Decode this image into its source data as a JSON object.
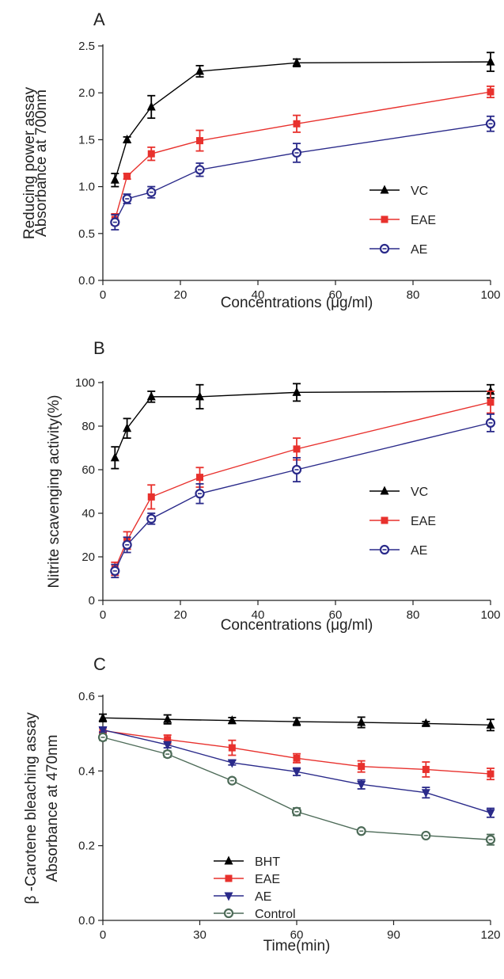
{
  "chart_data": [
    {
      "panel": "A",
      "type": "line",
      "title": "",
      "xlabel": "Concentrations (μg/ml)",
      "ylabel": [
        "Reducing power assay",
        "Absorbance at 700nm"
      ],
      "xlim": [
        0,
        100
      ],
      "ylim": [
        0,
        2.5
      ],
      "xticks": [
        0,
        20,
        40,
        60,
        80,
        100
      ],
      "yticks": [
        0.0,
        0.5,
        1.0,
        1.5,
        2.0,
        2.5
      ],
      "ytick_labels": [
        "0.0",
        "0.5",
        "1.0",
        "1.5",
        "2.0",
        "2.5"
      ],
      "legend_position": "center-right",
      "grid": false,
      "series": [
        {
          "name": "VC",
          "color": "#000000",
          "marker": "triangle-up",
          "x": [
            3.125,
            6.25,
            12.5,
            25,
            50,
            100
          ],
          "y": [
            1.07,
            1.5,
            1.85,
            2.23,
            2.32,
            2.33
          ],
          "err": [
            0.07,
            0.03,
            0.12,
            0.06,
            0.04,
            0.1
          ]
        },
        {
          "name": "EAE",
          "color": "#e8312d",
          "marker": "square",
          "x": [
            3.125,
            6.25,
            12.5,
            25,
            50,
            100
          ],
          "y": [
            0.65,
            1.11,
            1.35,
            1.49,
            1.67,
            2.01
          ],
          "err": [
            0.06,
            0.03,
            0.07,
            0.11,
            0.09,
            0.06
          ]
        },
        {
          "name": "AE",
          "color": "#2a2a8a",
          "marker": "circle-open",
          "x": [
            3.125,
            6.25,
            12.5,
            25,
            50,
            100
          ],
          "y": [
            0.62,
            0.87,
            0.94,
            1.18,
            1.36,
            1.67
          ],
          "err": [
            0.08,
            0.05,
            0.06,
            0.07,
            0.1,
            0.08
          ]
        }
      ]
    },
    {
      "panel": "B",
      "type": "line",
      "title": "",
      "xlabel": "Concentrations (μg/ml)",
      "ylabel": [
        "Nitrite scavenging activity(%)"
      ],
      "xlim": [
        0,
        100
      ],
      "ylim": [
        0,
        100
      ],
      "xticks": [
        0,
        20,
        40,
        60,
        80,
        100
      ],
      "yticks": [
        0,
        20,
        40,
        60,
        80,
        100
      ],
      "ytick_labels": [
        "0",
        "20",
        "40",
        "60",
        "80",
        "100"
      ],
      "legend_position": "center-right",
      "grid": false,
      "series": [
        {
          "name": "VC",
          "color": "#000000",
          "marker": "triangle-up",
          "x": [
            3.125,
            6.25,
            12.5,
            25,
            50,
            100
          ],
          "y": [
            65.5,
            79,
            93.5,
            93.5,
            95.5,
            96
          ],
          "err": [
            5,
            4.5,
            2.5,
            5.5,
            4,
            3
          ]
        },
        {
          "name": "EAE",
          "color": "#e8312d",
          "marker": "square",
          "x": [
            3.125,
            6.25,
            12.5,
            25,
            50,
            100
          ],
          "y": [
            14.5,
            27.5,
            47.5,
            56.5,
            69.5,
            91
          ],
          "err": [
            3,
            4,
            5.5,
            4.5,
            5,
            5
          ]
        },
        {
          "name": "AE",
          "color": "#2a2a8a",
          "marker": "circle-open",
          "x": [
            3.125,
            6.25,
            12.5,
            25,
            50,
            100
          ],
          "y": [
            13.5,
            25.5,
            37.5,
            49,
            60,
            81.5
          ],
          "err": [
            3,
            3.5,
            2.5,
            4.5,
            5.5,
            4
          ]
        }
      ]
    },
    {
      "panel": "C",
      "type": "line",
      "title": "",
      "xlabel": "Time(min)",
      "ylabel": [
        "β -Carotene bleaching assay",
        "Absorbance at 470nm"
      ],
      "xlim": [
        0,
        120
      ],
      "ylim": [
        0,
        0.6
      ],
      "xticks": [
        0,
        30,
        60,
        90,
        120
      ],
      "yticks": [
        0.0,
        0.2,
        0.4,
        0.6
      ],
      "ytick_labels": [
        "0.0",
        "0.2",
        "0.4",
        "0.6"
      ],
      "legend_position": "bottom-left",
      "grid": false,
      "series": [
        {
          "name": "BHT",
          "color": "#000000",
          "marker": "triangle-up",
          "x": [
            0,
            20,
            40,
            60,
            80,
            100,
            120
          ],
          "y": [
            0.542,
            0.538,
            0.535,
            0.532,
            0.53,
            0.527,
            0.523
          ],
          "err": [
            0.01,
            0.012,
            0.008,
            0.01,
            0.014,
            0.005,
            0.015
          ]
        },
        {
          "name": "EAE",
          "color": "#e8312d",
          "marker": "square",
          "x": [
            0,
            20,
            40,
            60,
            80,
            100,
            120
          ],
          "y": [
            0.508,
            0.484,
            0.462,
            0.434,
            0.412,
            0.404,
            0.392
          ],
          "err": [
            0.008,
            0.012,
            0.02,
            0.012,
            0.015,
            0.02,
            0.015
          ]
        },
        {
          "name": "AE",
          "color": "#2a2a8a",
          "marker": "triangle-down",
          "x": [
            0,
            20,
            40,
            60,
            80,
            100,
            120
          ],
          "y": [
            0.51,
            0.47,
            0.422,
            0.398,
            0.364,
            0.342,
            0.288
          ],
          "err": [
            0.006,
            0.008,
            0.006,
            0.01,
            0.012,
            0.014,
            0.012
          ]
        },
        {
          "name": "Control",
          "color": "#4d6b58",
          "marker": "circle-open",
          "x": [
            0,
            20,
            40,
            60,
            80,
            100,
            120
          ],
          "y": [
            0.49,
            0.445,
            0.374,
            0.291,
            0.239,
            0.227,
            0.216
          ],
          "err": [
            0.008,
            0.008,
            0.006,
            0.01,
            0.005,
            0.005,
            0.014
          ]
        }
      ]
    }
  ]
}
